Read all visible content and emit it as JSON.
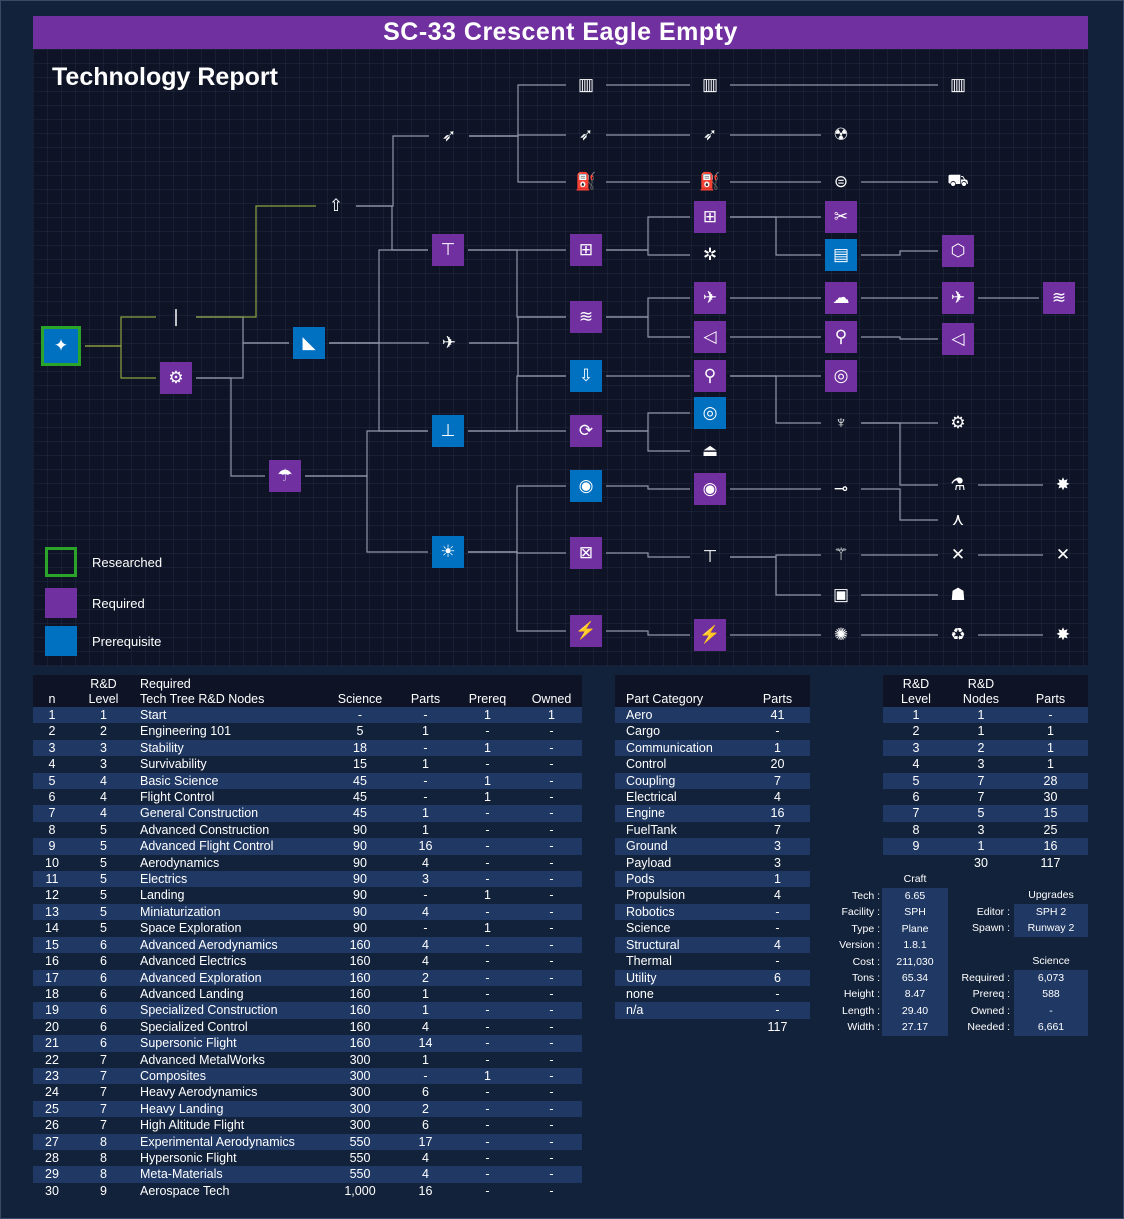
{
  "title": "SC-33 Crescent Eagle Empty",
  "report_title": "Technology Report",
  "legend": [
    {
      "label": "Researched",
      "color": "#2aa52a"
    },
    {
      "label": "Required",
      "color": "#7030a0"
    },
    {
      "label": "Prerequisite",
      "color": "#0070c0"
    }
  ],
  "colors": {
    "required": "#7030a0",
    "prerequisite": "#0070c0",
    "researched": "#2aa52a",
    "background": "#12223a"
  },
  "nodes_table": {
    "headers": {
      "n": "n",
      "level_top": "R&D",
      "level": "Level",
      "name_top": "Required",
      "name": "Tech Tree R&D Nodes",
      "science": "Science",
      "parts": "Parts",
      "prereq": "Prereq",
      "owned": "Owned"
    },
    "rows": [
      [
        "1",
        "1",
        "Start",
        "-",
        "-",
        "1",
        "1"
      ],
      [
        "2",
        "2",
        "Engineering 101",
        "5",
        "1",
        "-",
        "-"
      ],
      [
        "3",
        "3",
        "Stability",
        "18",
        "-",
        "1",
        "-"
      ],
      [
        "4",
        "3",
        "Survivability",
        "15",
        "1",
        "-",
        "-"
      ],
      [
        "5",
        "4",
        "Basic Science",
        "45",
        "-",
        "1",
        "-"
      ],
      [
        "6",
        "4",
        "Flight Control",
        "45",
        "-",
        "1",
        "-"
      ],
      [
        "7",
        "4",
        "General Construction",
        "45",
        "1",
        "-",
        "-"
      ],
      [
        "8",
        "5",
        "Advanced Construction",
        "90",
        "1",
        "-",
        "-"
      ],
      [
        "9",
        "5",
        "Advanced Flight Control",
        "90",
        "16",
        "-",
        "-"
      ],
      [
        "10",
        "5",
        "Aerodynamics",
        "90",
        "4",
        "-",
        "-"
      ],
      [
        "11",
        "5",
        "Electrics",
        "90",
        "3",
        "-",
        "-"
      ],
      [
        "12",
        "5",
        "Landing",
        "90",
        "-",
        "1",
        "-"
      ],
      [
        "13",
        "5",
        "Miniaturization",
        "90",
        "4",
        "-",
        "-"
      ],
      [
        "14",
        "5",
        "Space Exploration",
        "90",
        "-",
        "1",
        "-"
      ],
      [
        "15",
        "6",
        "Advanced Aerodynamics",
        "160",
        "4",
        "-",
        "-"
      ],
      [
        "16",
        "6",
        "Advanced Electrics",
        "160",
        "4",
        "-",
        "-"
      ],
      [
        "17",
        "6",
        "Advanced Exploration",
        "160",
        "2",
        "-",
        "-"
      ],
      [
        "18",
        "6",
        "Advanced Landing",
        "160",
        "1",
        "-",
        "-"
      ],
      [
        "19",
        "6",
        "Specialized  Construction",
        "160",
        "1",
        "-",
        "-"
      ],
      [
        "20",
        "6",
        "Specialized Control",
        "160",
        "4",
        "-",
        "-"
      ],
      [
        "21",
        "6",
        "Supersonic Flight",
        "160",
        "14",
        "-",
        "-"
      ],
      [
        "22",
        "7",
        "Advanced MetalWorks",
        "300",
        "1",
        "-",
        "-"
      ],
      [
        "23",
        "7",
        "Composites",
        "300",
        "-",
        "1",
        "-"
      ],
      [
        "24",
        "7",
        "Heavy Aerodynamics",
        "300",
        "6",
        "-",
        "-"
      ],
      [
        "25",
        "7",
        "Heavy Landing",
        "300",
        "2",
        "-",
        "-"
      ],
      [
        "26",
        "7",
        "High Altitude Flight",
        "300",
        "6",
        "-",
        "-"
      ],
      [
        "27",
        "8",
        "Experimental Aerodynamics",
        "550",
        "17",
        "-",
        "-"
      ],
      [
        "28",
        "8",
        "Hypersonic Flight",
        "550",
        "4",
        "-",
        "-"
      ],
      [
        "29",
        "8",
        "Meta-Materials",
        "550",
        "4",
        "-",
        "-"
      ],
      [
        "30",
        "9",
        "Aerospace Tech",
        "1,000",
        "16",
        "-",
        "-"
      ]
    ]
  },
  "category_table": {
    "headers": {
      "category": "Part Category",
      "parts": "Parts"
    },
    "rows": [
      [
        "Aero",
        "41"
      ],
      [
        "Cargo",
        "-"
      ],
      [
        "Communication",
        "1"
      ],
      [
        "Control",
        "20"
      ],
      [
        "Coupling",
        "7"
      ],
      [
        "Electrical",
        "4"
      ],
      [
        "Engine",
        "16"
      ],
      [
        "FuelTank",
        "7"
      ],
      [
        "Ground",
        "3"
      ],
      [
        "Payload",
        "3"
      ],
      [
        "Pods",
        "1"
      ],
      [
        "Propulsion",
        "4"
      ],
      [
        "Robotics",
        "-"
      ],
      [
        "Science",
        "-"
      ],
      [
        "Structural",
        "4"
      ],
      [
        "Thermal",
        "-"
      ],
      [
        "Utility",
        "6"
      ],
      [
        "none",
        "-"
      ],
      [
        "n/a",
        "-"
      ]
    ],
    "total": "117"
  },
  "level_table": {
    "headers": {
      "level_top": "R&D",
      "level": "Level",
      "nodes_top": "R&D",
      "nodes": "Nodes",
      "parts": "Parts"
    },
    "rows": [
      [
        "1",
        "1",
        "-"
      ],
      [
        "2",
        "1",
        "1"
      ],
      [
        "3",
        "2",
        "1"
      ],
      [
        "4",
        "3",
        "1"
      ],
      [
        "5",
        "7",
        "28"
      ],
      [
        "6",
        "7",
        "30"
      ],
      [
        "7",
        "5",
        "15"
      ],
      [
        "8",
        "3",
        "25"
      ],
      [
        "9",
        "1",
        "16"
      ]
    ],
    "total_nodes": "30",
    "total_parts": "117"
  },
  "craft": {
    "heading": "Craft",
    "rows": [
      {
        "label": "Tech :",
        "value": "6.65"
      },
      {
        "label": "Facility :",
        "value": "SPH"
      },
      {
        "label": "Type :",
        "value": "Plane"
      },
      {
        "label": "Version :",
        "value": "1.8.1"
      },
      {
        "label": "Cost :",
        "value": "211,030"
      },
      {
        "label": "Tons :",
        "value": "65.34"
      },
      {
        "label": "Height :",
        "value": "8.47"
      },
      {
        "label": "Length :",
        "value": "29.40"
      },
      {
        "label": "Width :",
        "value": "27.17"
      }
    ]
  },
  "upgrades": {
    "heading": "Upgrades",
    "rows": [
      {
        "label": "Editor :",
        "value": "SPH 2"
      },
      {
        "label": "Spawn :",
        "value": "Runway 2"
      }
    ]
  },
  "science": {
    "heading": "Science",
    "rows": [
      {
        "label": "Required :",
        "value": "6,073"
      },
      {
        "label": "Prereq :",
        "value": "588"
      },
      {
        "label": "Owned :",
        "value": "-"
      },
      {
        "label": "Needed :",
        "value": "6,661"
      }
    ]
  },
  "tree_nodes": [
    {
      "id": "start",
      "kind": "green",
      "icon": "start-icon",
      "glyph": "✦"
    },
    {
      "id": "eng101",
      "kind": "plain",
      "icon": "rocket-small-icon",
      "glyph": "❘"
    },
    {
      "id": "basic-rocketry",
      "kind": "purple",
      "icon": "gears-icon",
      "glyph": "⚙"
    },
    {
      "id": "stability",
      "kind": "blue",
      "icon": "fins-icon",
      "glyph": "◣"
    },
    {
      "id": "survivability",
      "kind": "purple",
      "icon": "parachute-icon",
      "glyph": "☂"
    },
    {
      "id": "general-rocketry",
      "kind": "plain",
      "icon": "rocket-icon",
      "glyph": "⇧"
    },
    {
      "id": "aviation",
      "kind": "plain",
      "icon": "plane-icon",
      "glyph": "✈"
    },
    {
      "id": "flight-control",
      "kind": "blue",
      "icon": "control-icon",
      "glyph": "⊥"
    },
    {
      "id": "basic-science",
      "kind": "blue",
      "icon": "bulb-icon",
      "glyph": "☀"
    },
    {
      "id": "advanced-rocketry",
      "kind": "plain",
      "icon": "missile-icon",
      "glyph": "➶"
    },
    {
      "id": "general-construction",
      "kind": "purple",
      "icon": "crane-icon",
      "glyph": "⊤"
    },
    {
      "id": "heavy-rocketry",
      "kind": "plain",
      "icon": "tower-icon",
      "glyph": "▥"
    },
    {
      "id": "propulsion-systems",
      "kind": "plain",
      "icon": "missile2-icon",
      "glyph": "➶"
    },
    {
      "id": "fuel-systems",
      "kind": "plain",
      "icon": "fuel-nozzle-icon",
      "glyph": "⛽"
    },
    {
      "id": "advanced-construction",
      "kind": "purple",
      "icon": "construction-icon",
      "glyph": "⊞"
    },
    {
      "id": "aerodynamics",
      "kind": "purple",
      "icon": "aero-icon",
      "glyph": "≋"
    },
    {
      "id": "landing",
      "kind": "blue",
      "icon": "landing-icon",
      "glyph": "⇩"
    },
    {
      "id": "advanced-flight-control",
      "kind": "purple",
      "icon": "gyro-icon",
      "glyph": "⟳"
    },
    {
      "id": "space-exploration",
      "kind": "blue",
      "icon": "pod-icon",
      "glyph": "◉"
    },
    {
      "id": "miniaturization",
      "kind": "purple",
      "icon": "mini-icon",
      "glyph": "⊠"
    },
    {
      "id": "electrics",
      "kind": "purple",
      "icon": "lightning-icon",
      "glyph": "⚡"
    },
    {
      "id": "heavier-rocketry",
      "kind": "plain",
      "icon": "tower2-icon",
      "glyph": "▥"
    },
    {
      "id": "precision-propulsion",
      "kind": "plain",
      "icon": "missile3-icon",
      "glyph": "➶"
    },
    {
      "id": "advanced-fuel",
      "kind": "plain",
      "icon": "fuel-pump-icon",
      "glyph": "⛽"
    },
    {
      "id": "specialized-construction",
      "kind": "purple",
      "icon": "modules-icon",
      "glyph": "⊞"
    },
    {
      "id": "advanced-metalworks-pre",
      "kind": "plain",
      "icon": "nodes-icon",
      "glyph": "✲"
    },
    {
      "id": "supersonic-flight",
      "kind": "purple",
      "icon": "jet-icon",
      "glyph": "✈"
    },
    {
      "id": "advanced-aerodynamics",
      "kind": "purple",
      "icon": "wing-icon",
      "glyph": "◁"
    },
    {
      "id": "advanced-landing",
      "kind": "purple",
      "icon": "landing-gear-icon",
      "glyph": "⚲"
    },
    {
      "id": "specialized-control",
      "kind": "blue",
      "icon": "reaction-wheel-icon",
      "glyph": "◎"
    },
    {
      "id": "advanced-exploration-pod",
      "kind": "plain",
      "icon": "capsule-icon",
      "glyph": "⏏"
    },
    {
      "id": "advanced-exploration",
      "kind": "purple",
      "icon": "ladder-icon",
      "glyph": "◉"
    },
    {
      "id": "precision-engineering",
      "kind": "plain",
      "icon": "caliper-icon",
      "glyph": "⊤"
    },
    {
      "id": "advanced-electrics",
      "kind": "purple",
      "icon": "battery-icon",
      "glyph": "⚡"
    },
    {
      "id": "nuclear-propulsion",
      "kind": "plain",
      "icon": "radiation-icon",
      "glyph": "☢"
    },
    {
      "id": "high-performance-fuel",
      "kind": "plain",
      "icon": "tank-icon",
      "glyph": "⊜"
    },
    {
      "id": "advanced-metalworks",
      "kind": "purple",
      "icon": "metal-icon",
      "glyph": "✂"
    },
    {
      "id": "composites",
      "kind": "blue",
      "icon": "composite-icon",
      "glyph": "▤"
    },
    {
      "id": "high-altitude-flight",
      "kind": "purple",
      "icon": "cloud-plane-icon",
      "glyph": "☁"
    },
    {
      "id": "heavy-landing",
      "kind": "purple",
      "icon": "heavy-gear-icon",
      "glyph": "⚲"
    },
    {
      "id": "heavy-aerodynamics",
      "kind": "purple",
      "icon": "wheels-icon",
      "glyph": "◎"
    },
    {
      "id": "command-modules",
      "kind": "plain",
      "icon": "probe-icon",
      "glyph": "♆"
    },
    {
      "id": "field-science",
      "kind": "plain",
      "icon": "telescope-icon",
      "glyph": "⊸"
    },
    {
      "id": "electronics",
      "kind": "plain",
      "icon": "antenna-icon",
      "glyph": "⚚"
    },
    {
      "id": "unmanned-tech",
      "kind": "plain",
      "icon": "chip-icon",
      "glyph": "▣"
    },
    {
      "id": "advanced-solar",
      "kind": "plain",
      "icon": "solar-icon",
      "glyph": "✺"
    },
    {
      "id": "very-heavy-rocketry",
      "kind": "plain",
      "icon": "tower3-icon",
      "glyph": "▥"
    },
    {
      "id": "advanced-units",
      "kind": "plain",
      "icon": "rover-icon",
      "glyph": "⛟"
    },
    {
      "id": "meta-materials",
      "kind": "purple",
      "icon": "molecule-icon",
      "glyph": "⬡"
    },
    {
      "id": "hypersonic-flight",
      "kind": "purple",
      "icon": "hypersonic-plane-icon",
      "glyph": "✈"
    },
    {
      "id": "experimental-aerodynamics",
      "kind": "purple",
      "icon": "intake-icon",
      "glyph": "◁"
    },
    {
      "id": "experimental-motors",
      "kind": "plain",
      "icon": "motor-icon",
      "glyph": "⚙"
    },
    {
      "id": "experimental-science",
      "kind": "plain",
      "icon": "flask-icon",
      "glyph": "⚗"
    },
    {
      "id": "automation",
      "kind": "plain",
      "icon": "network-icon",
      "glyph": "⋏"
    },
    {
      "id": "advanced-science",
      "kind": "plain",
      "icon": "satellite-icon",
      "glyph": "✕"
    },
    {
      "id": "robotics",
      "kind": "plain",
      "icon": "robot-icon",
      "glyph": "☗"
    },
    {
      "id": "cycling",
      "kind": "plain",
      "icon": "recycle-icon",
      "glyph": "♻"
    },
    {
      "id": "aerospace-tech",
      "kind": "purple",
      "icon": "aerospace-icon",
      "glyph": "≋"
    },
    {
      "id": "sci-burst",
      "kind": "plain",
      "icon": "burst-icon",
      "glyph": "✸"
    },
    {
      "id": "sat-far",
      "kind": "plain",
      "icon": "satellite2-icon",
      "glyph": "✕"
    },
    {
      "id": "burst-far",
      "kind": "plain",
      "icon": "burst2-icon",
      "glyph": "✸"
    }
  ]
}
